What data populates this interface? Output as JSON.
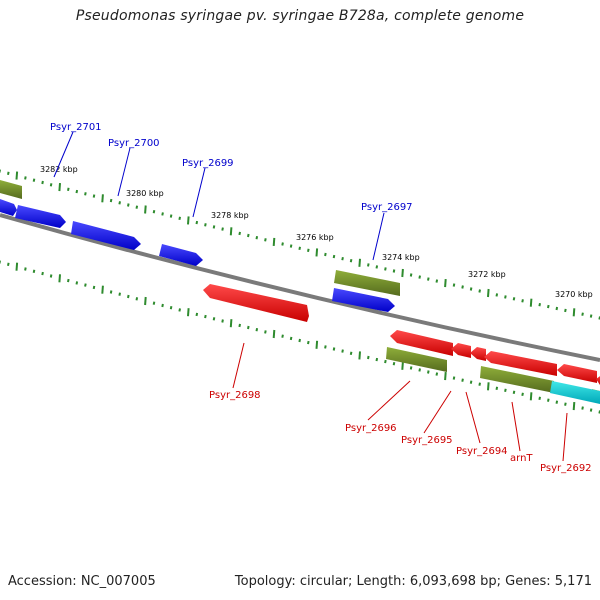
{
  "title": "Pseudomonas syringae pv. syringae B728a, complete genome",
  "footer": {
    "accession": "Accession: NC_007005",
    "summary": "Topology: circular; Length: 6,093,698 bp; Genes: 5,171"
  },
  "colors": {
    "forward_gene": "#1010e0",
    "reverse_gene": "#e00000",
    "rna_feature": "#6b8e23",
    "other_feature": "#00c8c8",
    "backbone": "#808080",
    "tick": "#2e8b2e",
    "forward_label": "#0000cc",
    "reverse_label": "#cc0000"
  },
  "scale_labels": [
    "3282 kbp",
    "3280 kbp",
    "3278 kbp",
    "3276 kbp",
    "3274 kbp",
    "3272 kbp",
    "3270 kbp"
  ],
  "forward_gene_labels": [
    "Psyr_2701",
    "Psyr_2700",
    "Psyr_2699",
    "Psyr_2697"
  ],
  "reverse_gene_labels": [
    "Psyr_2698",
    "Psyr_2696",
    "Psyr_2695",
    "Psyr_2694",
    "arnT",
    "Psyr_2692"
  ]
}
